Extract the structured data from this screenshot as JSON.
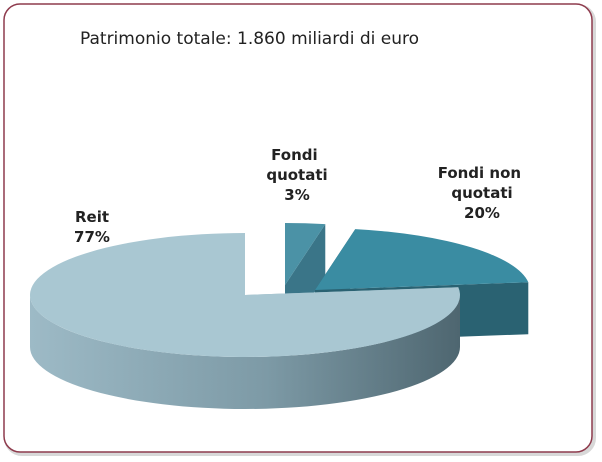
{
  "chart_data": {
    "type": "pie3d",
    "title": "Patrimonio totale: 1.860 miliardi di euro",
    "categories": [
      "Reit",
      "Fondi quotati",
      "Fondi non quotati"
    ],
    "values": [
      77,
      3,
      20
    ],
    "value_labels": [
      "77%",
      "3%",
      "20%"
    ],
    "colors": [
      "#a9c7d2",
      "#4b92a6",
      "#3a8ca2"
    ]
  }
}
